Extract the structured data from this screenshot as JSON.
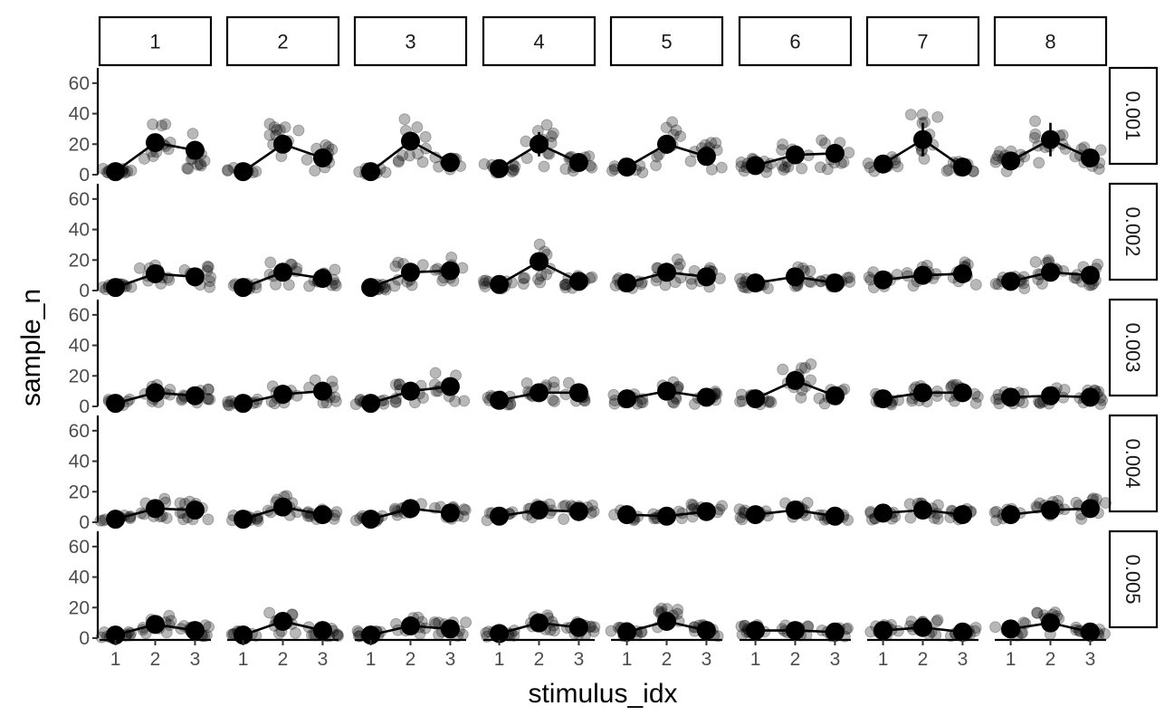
{
  "chart_data": {
    "type": "scatter",
    "subtype": "faceted dot plot with mean line and error bars",
    "xlabel": "stimulus_idx",
    "ylabel": "sample_n",
    "x_ticks": [
      "1",
      "2",
      "3"
    ],
    "y_ticks": [
      "0",
      "20",
      "40",
      "60"
    ],
    "ylim": [
      0,
      70
    ],
    "xlim": [
      0.6,
      3.4
    ],
    "column_facets": [
      "1",
      "2",
      "3",
      "4",
      "5",
      "6",
      "7",
      "8"
    ],
    "row_facets": [
      "0.001",
      "0.002",
      "0.003",
      "0.004",
      "0.005"
    ],
    "grid": false,
    "legend": "none",
    "colors": {
      "mean": "#000000",
      "observations": "rgba(0,0,0,0.28)",
      "strip_border": "#000000"
    },
    "means": [
      [
        [
          2,
          21,
          16
        ],
        [
          2,
          20,
          11
        ],
        [
          2,
          22,
          8
        ],
        [
          4,
          20,
          8
        ],
        [
          5,
          20,
          12
        ],
        [
          6,
          13,
          14
        ],
        [
          7,
          23,
          5
        ],
        [
          9,
          23,
          11
        ]
      ],
      [
        [
          2,
          11,
          9
        ],
        [
          2,
          12,
          8
        ],
        [
          2,
          12,
          13
        ],
        [
          4,
          19,
          6
        ],
        [
          5,
          12,
          9
        ],
        [
          5,
          9,
          5
        ],
        [
          7,
          10,
          11
        ],
        [
          6,
          12,
          10
        ]
      ],
      [
        [
          2,
          9,
          7
        ],
        [
          2,
          8,
          10
        ],
        [
          2,
          10,
          13
        ],
        [
          4,
          9,
          9
        ],
        [
          5,
          10,
          6
        ],
        [
          5,
          17,
          7
        ],
        [
          5,
          9,
          9
        ],
        [
          6,
          7,
          6
        ]
      ],
      [
        [
          2,
          9,
          8
        ],
        [
          2,
          10,
          5
        ],
        [
          2,
          9,
          6
        ],
        [
          4,
          8,
          7
        ],
        [
          5,
          4,
          7
        ],
        [
          5,
          8,
          4
        ],
        [
          6,
          8,
          5
        ],
        [
          5,
          8,
          9
        ]
      ],
      [
        [
          2,
          9,
          5
        ],
        [
          2,
          11,
          5
        ],
        [
          2,
          8,
          6
        ],
        [
          3,
          10,
          7
        ],
        [
          4,
          11,
          5
        ],
        [
          5,
          5,
          4
        ],
        [
          5,
          7,
          4
        ],
        [
          6,
          10,
          4
        ]
      ]
    ],
    "error": [
      [
        [
          1,
          5,
          4
        ],
        [
          1,
          4,
          4
        ],
        [
          1,
          5,
          3
        ],
        [
          1,
          8,
          3
        ],
        [
          1,
          5,
          3
        ],
        [
          1,
          4,
          4
        ],
        [
          1,
          11,
          3
        ],
        [
          1,
          11,
          4
        ]
      ],
      [
        [
          1,
          4,
          3
        ],
        [
          1,
          3,
          3
        ],
        [
          1,
          4,
          3
        ],
        [
          1,
          5,
          3
        ],
        [
          1,
          3,
          3
        ],
        [
          1,
          3,
          2
        ],
        [
          1,
          4,
          4
        ],
        [
          1,
          4,
          4
        ]
      ],
      [
        [
          1,
          3,
          3
        ],
        [
          1,
          3,
          3
        ],
        [
          1,
          3,
          4
        ],
        [
          1,
          3,
          3
        ],
        [
          1,
          3,
          2
        ],
        [
          1,
          5,
          2
        ],
        [
          1,
          3,
          3
        ],
        [
          1,
          2,
          2
        ]
      ],
      [
        [
          1,
          3,
          3
        ],
        [
          1,
          3,
          2
        ],
        [
          1,
          3,
          2
        ],
        [
          1,
          3,
          3
        ],
        [
          1,
          2,
          3
        ],
        [
          1,
          3,
          2
        ],
        [
          1,
          3,
          2
        ],
        [
          1,
          3,
          3
        ]
      ],
      [
        [
          1,
          3,
          2
        ],
        [
          1,
          3,
          2
        ],
        [
          1,
          3,
          2
        ],
        [
          1,
          3,
          2
        ],
        [
          1,
          4,
          2
        ],
        [
          1,
          3,
          2
        ],
        [
          1,
          3,
          2
        ],
        [
          1,
          3,
          2
        ]
      ]
    ]
  }
}
